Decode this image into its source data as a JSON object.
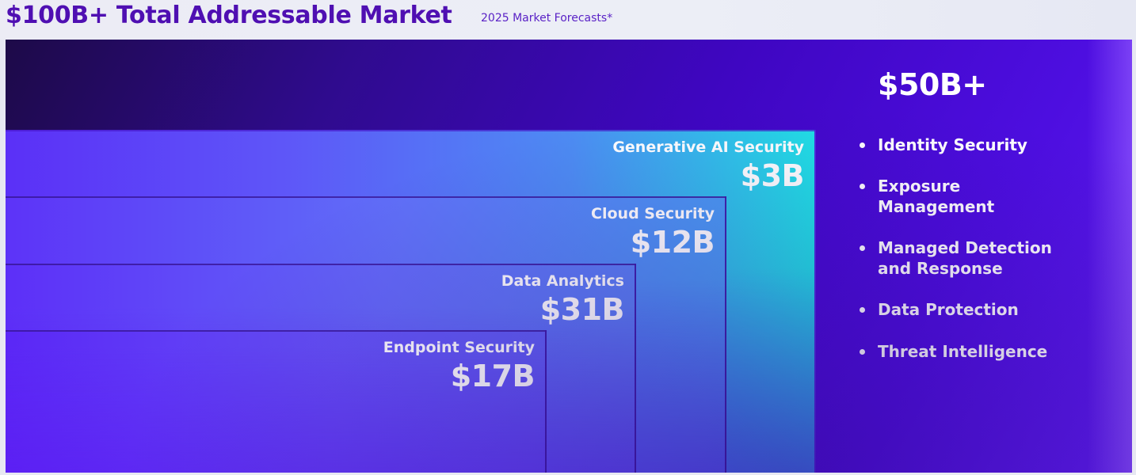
{
  "header": {
    "title": "$100B+ Total Addressable Market",
    "subtitle": "2025 Market Forecasts*"
  },
  "segments": [
    {
      "name": "Generative AI Security",
      "value": "$3B"
    },
    {
      "name": "Cloud Security",
      "value": "$12B"
    },
    {
      "name": "Data Analytics",
      "value": "$31B"
    },
    {
      "name": "Endpoint Security",
      "value": "$17B"
    }
  ],
  "other": {
    "total": "$50B+",
    "items": [
      "Identity Security",
      "Exposure Management",
      "Managed Detection and Response",
      "Data Protection",
      "Threat Intelligence"
    ]
  }
}
